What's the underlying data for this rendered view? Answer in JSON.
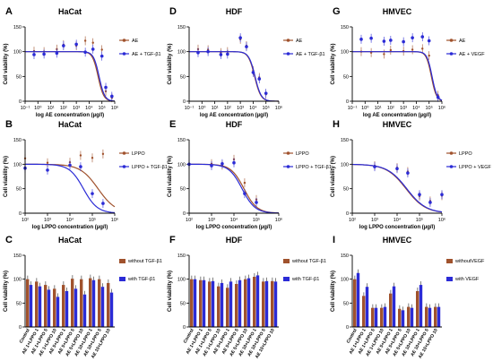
{
  "figure": {
    "colors": {
      "series1": "#a0522d",
      "series2": "#2b2bd6",
      "axis": "#000000"
    }
  },
  "chart_data": [
    {
      "id": "A",
      "type": "scatter",
      "title": "HaCat",
      "xlabel": "log AE concentration (µg/l)",
      "ylabel": "Cell viability (%)",
      "xscale": "log",
      "xlim": [
        0.1,
        1000000
      ],
      "ylim": [
        0,
        150
      ],
      "xticks": [
        "10⁻¹",
        "10⁰",
        "10¹",
        "10²",
        "10³",
        "10⁴",
        "10⁵",
        "10⁶"
      ],
      "yticks": [
        "0",
        "50",
        "100",
        "150"
      ],
      "legend": "right",
      "fit": "sigmoidal",
      "series": [
        {
          "name": "AE",
          "color": "#a0522d",
          "ic50": 50000,
          "hill": 2.0,
          "x": [
            0.5,
            3,
            30,
            100,
            1000,
            5000,
            20000,
            100000,
            200000,
            600000
          ],
          "y": [
            101,
            100,
            105,
            114,
            112,
            122,
            118,
            104,
            20,
            7
          ]
        },
        {
          "name": "AE + TGF-β1",
          "color": "#2b2bd6",
          "ic50": 60000,
          "hill": 2.0,
          "x": [
            0.5,
            3,
            30,
            100,
            1000,
            5000,
            20000,
            100000,
            200000,
            600000
          ],
          "y": [
            94,
            95,
            97,
            112,
            115,
            99,
            105,
            91,
            28,
            10
          ]
        }
      ]
    },
    {
      "id": "D",
      "type": "scatter",
      "title": "HDF",
      "xlabel": "log AE concentration (µg/l)",
      "ylabel": "Cell viability (%)",
      "xscale": "log",
      "xlim": [
        0.1,
        1000000
      ],
      "ylim": [
        0,
        150
      ],
      "xticks": [
        "10⁻¹",
        "10⁰",
        "10¹",
        "10²",
        "10³",
        "10⁴",
        "10⁵",
        "10⁶"
      ],
      "yticks": [
        "0",
        "50",
        "100",
        "150"
      ],
      "legend": "right",
      "fit": "sigmoidal",
      "series": [
        {
          "name": "AE",
          "color": "#a0522d",
          "ic50": 13000,
          "hill": 1.8,
          "x": [
            0.5,
            3,
            30,
            100,
            1000,
            3000,
            10000,
            30000,
            100000
          ],
          "y": [
            105,
            104,
            98,
            100,
            125,
            112,
            62,
            48,
            14
          ]
        },
        {
          "name": "AE + TGF-β1",
          "color": "#2b2bd6",
          "ic50": 14000,
          "hill": 1.8,
          "x": [
            0.5,
            3,
            30,
            100,
            1000,
            3000,
            10000,
            30000,
            100000
          ],
          "y": [
            98,
            100,
            94,
            95,
            128,
            110,
            58,
            45,
            16
          ]
        }
      ]
    },
    {
      "id": "G",
      "type": "scatter",
      "title": "HMVEC",
      "xlabel": "log AE concentration (µg/l)",
      "ylabel": "Cell viability (%)",
      "xscale": "log",
      "xlim": [
        0.1,
        1000000
      ],
      "ylim": [
        0,
        150
      ],
      "xticks": [
        "10⁻¹",
        "10⁰",
        "10¹",
        "10²",
        "10³",
        "10⁴",
        "10⁵",
        "10⁶"
      ],
      "yticks": [
        "0",
        "50",
        "100",
        "150"
      ],
      "legend": "right",
      "fit": "sigmoidal",
      "series": [
        {
          "name": "AE",
          "color": "#a0522d",
          "ic50": 150000,
          "hill": 2.2,
          "x": [
            0.5,
            3,
            30,
            100,
            1000,
            5000,
            30000,
            100000,
            500000
          ],
          "y": [
            100,
            98,
            95,
            103,
            101,
            104,
            106,
            92,
            12
          ]
        },
        {
          "name": "AE + VEGF",
          "color": "#2b2bd6",
          "ic50": 170000,
          "hill": 2.2,
          "x": [
            0.5,
            3,
            30,
            100,
            1000,
            5000,
            30000,
            100000,
            500000
          ],
          "y": [
            125,
            127,
            121,
            123,
            120,
            128,
            130,
            122,
            8
          ]
        }
      ]
    },
    {
      "id": "B",
      "type": "scatter",
      "title": "HaCat",
      "xlabel": "log LPPO concentration (µg/l)",
      "ylabel": "Cell viability (%)",
      "xscale": "log",
      "xlim": [
        100,
        1000000
      ],
      "ylim": [
        0,
        150
      ],
      "xticks": [
        "10²",
        "10³",
        "10⁴",
        "10⁵",
        "10⁶"
      ],
      "yticks": [
        "0",
        "50",
        "100",
        "150"
      ],
      "legend": "right",
      "fit": "sigmoidal",
      "series": [
        {
          "name": "LPPO",
          "color": "#a0522d",
          "ic50": 180000,
          "hill": 1.1,
          "x": [
            100,
            1000,
            10000,
            30000,
            100000,
            300000
          ],
          "y": [
            112,
            103,
            104,
            118,
            113,
            121
          ]
        },
        {
          "name": "LPPO + TGF-β1",
          "color": "#2b2bd6",
          "ic50": 40000,
          "hill": 1.4,
          "x": [
            100,
            1000,
            10000,
            30000,
            100000,
            300000
          ],
          "y": [
            92,
            88,
            98,
            95,
            40,
            20
          ]
        }
      ]
    },
    {
      "id": "E",
      "type": "scatter",
      "title": "HDF",
      "xlabel": "log LPPO concentration (µg/l)",
      "ylabel": "Cell viability (%)",
      "xscale": "log",
      "xlim": [
        100,
        1000000
      ],
      "ylim": [
        0,
        150
      ],
      "xticks": [
        "10²",
        "10³",
        "10⁴",
        "10⁵",
        "10⁶"
      ],
      "yticks": [
        "0",
        "50",
        "100",
        "150"
      ],
      "legend": "right",
      "fit": "sigmoidal",
      "series": [
        {
          "name": "LPPO",
          "color": "#a0522d",
          "ic50": 28000,
          "hill": 1.5,
          "x": [
            100,
            1000,
            3000,
            10000,
            30000,
            100000
          ],
          "y": [
            99,
            101,
            98,
            110,
            62,
            28
          ]
        },
        {
          "name": "LPPO + TGF-β1",
          "color": "#2b2bd6",
          "ic50": 23000,
          "hill": 1.5,
          "x": [
            100,
            1000,
            3000,
            10000,
            30000,
            100000
          ],
          "y": [
            100,
            97,
            101,
            103,
            40,
            22
          ]
        }
      ]
    },
    {
      "id": "H",
      "type": "scatter",
      "title": "HMVEC",
      "xlabel": "log LPPO concentration (µg/l)",
      "ylabel": "Cell viability (%)",
      "xscale": "log",
      "xlim": [
        100,
        1000000
      ],
      "ylim": [
        0,
        150
      ],
      "xticks": [
        "10²",
        "10³",
        "10⁴",
        "10⁵",
        "10⁶"
      ],
      "yticks": [
        "0",
        "50",
        "100",
        "150"
      ],
      "legend": "right",
      "fit": "sigmoidal",
      "series": [
        {
          "name": "LPPO",
          "color": "#a0522d",
          "ic50": 25000,
          "hill": 1.0,
          "x": [
            1000,
            10000,
            30000,
            100000,
            300000,
            1000000
          ],
          "y": [
            97,
            93,
            85,
            35,
            25,
            36
          ]
        },
        {
          "name": "LPPO + VEGF",
          "color": "#2b2bd6",
          "ic50": 27000,
          "hill": 1.0,
          "x": [
            1000,
            10000,
            30000,
            100000,
            300000,
            1000000
          ],
          "y": [
            95,
            91,
            82,
            38,
            22,
            38
          ]
        }
      ]
    },
    {
      "id": "C",
      "type": "bar",
      "title": "HaCat",
      "ylabel": "Cell viability (%)",
      "ylim": [
        0,
        150
      ],
      "yticks": [
        "0",
        "50",
        "100",
        "150"
      ],
      "legend": "right",
      "categories": [
        "Control",
        "AE 1+LPPO 1",
        "AE 1+LPPO 5",
        "AE 1+LPPO 10",
        "AE 5+LPPO 1",
        "AE 5+LPPO 5",
        "AE 5+LPPO 10",
        "AE 10+LPPO 1",
        "AE 10+LPPO 5",
        "AE 10+LPPO 10"
      ],
      "series": [
        {
          "name": "without TGF-β1",
          "color": "#a0522d",
          "values": [
            100,
            95,
            88,
            80,
            88,
            101,
            100,
            102,
            100,
            92
          ]
        },
        {
          "name": "with TGF-β1",
          "color": "#2b2bd6",
          "values": [
            88,
            85,
            78,
            63,
            75,
            80,
            68,
            98,
            84,
            72
          ]
        }
      ]
    },
    {
      "id": "F",
      "type": "bar",
      "title": "HDF",
      "ylabel": "Cell viability (%)",
      "ylim": [
        0,
        150
      ],
      "yticks": [
        "0",
        "50",
        "100",
        "150"
      ],
      "legend": "right",
      "categories": [
        "Control",
        "AE 1+LPPO 1",
        "AE 1+LPPO 5",
        "AE 1+LPPO 10",
        "AE 5+LPPO 1",
        "AE 5+LPPO 5",
        "AE 5+LPPO 10",
        "AE 10+LPPO 1",
        "AE 10+LPPO 5",
        "AE 10+LPPO 10"
      ],
      "series": [
        {
          "name": "without TGF-β1",
          "color": "#a0522d",
          "values": [
            100,
            98,
            95,
            85,
            82,
            90,
            100,
            105,
            95,
            96
          ]
        },
        {
          "name": "with TGF-β1",
          "color": "#2b2bd6",
          "values": [
            100,
            98,
            96,
            92,
            95,
            98,
            102,
            108,
            96,
            95
          ]
        }
      ]
    },
    {
      "id": "I",
      "type": "bar",
      "title": "HMVEC",
      "ylabel": "Cell viability (%)",
      "ylim": [
        0,
        150
      ],
      "yticks": [
        "0",
        "50",
        "100",
        "150"
      ],
      "legend": "right",
      "categories": [
        "Control",
        "AE 1+LPPO 1",
        "AE 1+LPPO 5",
        "AE 1+LPPO 10",
        "AE 5+LPPO 1",
        "AE 5+LPPO 5",
        "AE 5+LPPO 10",
        "AE 10+LPPO 1",
        "AE 10+LPPO 5",
        "AE 10+LPPO 10"
      ],
      "series": [
        {
          "name": "withoutVEGF",
          "color": "#a0522d",
          "values": [
            100,
            65,
            40,
            40,
            70,
            38,
            42,
            75,
            42,
            42
          ]
        },
        {
          "name": "with VEGF",
          "color": "#2b2bd6",
          "values": [
            113,
            84,
            40,
            42,
            85,
            35,
            40,
            88,
            40,
            42
          ]
        }
      ]
    }
  ]
}
